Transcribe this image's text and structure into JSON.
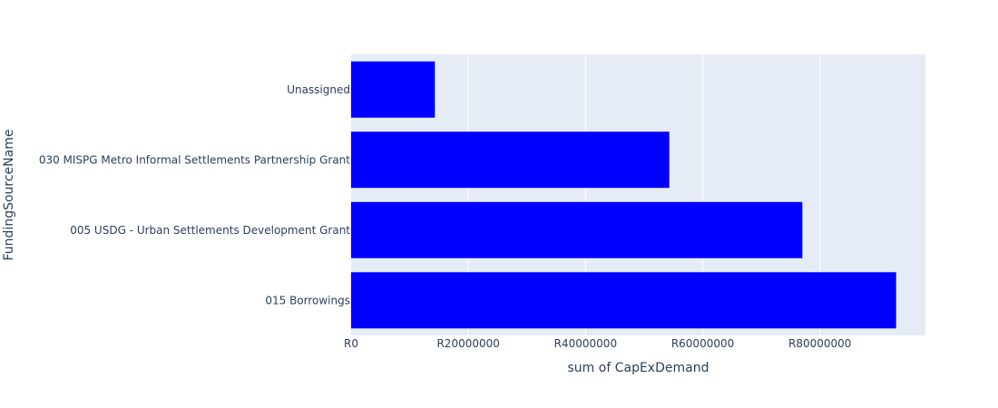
{
  "chart_data": {
    "type": "bar",
    "orientation": "horizontal",
    "categories": [
      "Unassigned",
      "030 MISPG Metro Informal Settlements Partnership Grant",
      "005 USDG - Urban Settlements Development Grant",
      "015 Borrowings"
    ],
    "values": [
      14300000,
      54300000,
      77000000,
      93000000
    ],
    "xlabel": "sum of CapExDemand",
    "ylabel": "FundingSourceName",
    "xlim": [
      0,
      98000000
    ],
    "x_ticks": [
      0,
      20000000,
      40000000,
      60000000,
      80000000
    ],
    "x_tick_labels": [
      "R0",
      "R20000000",
      "R40000000",
      "R60000000",
      "R80000000"
    ],
    "grid": "vertical",
    "colors": {
      "bar": "#0000ff",
      "plot_bg": "#e5ecf6",
      "grid": "#ffffff",
      "text": "#2a3f5f"
    }
  }
}
